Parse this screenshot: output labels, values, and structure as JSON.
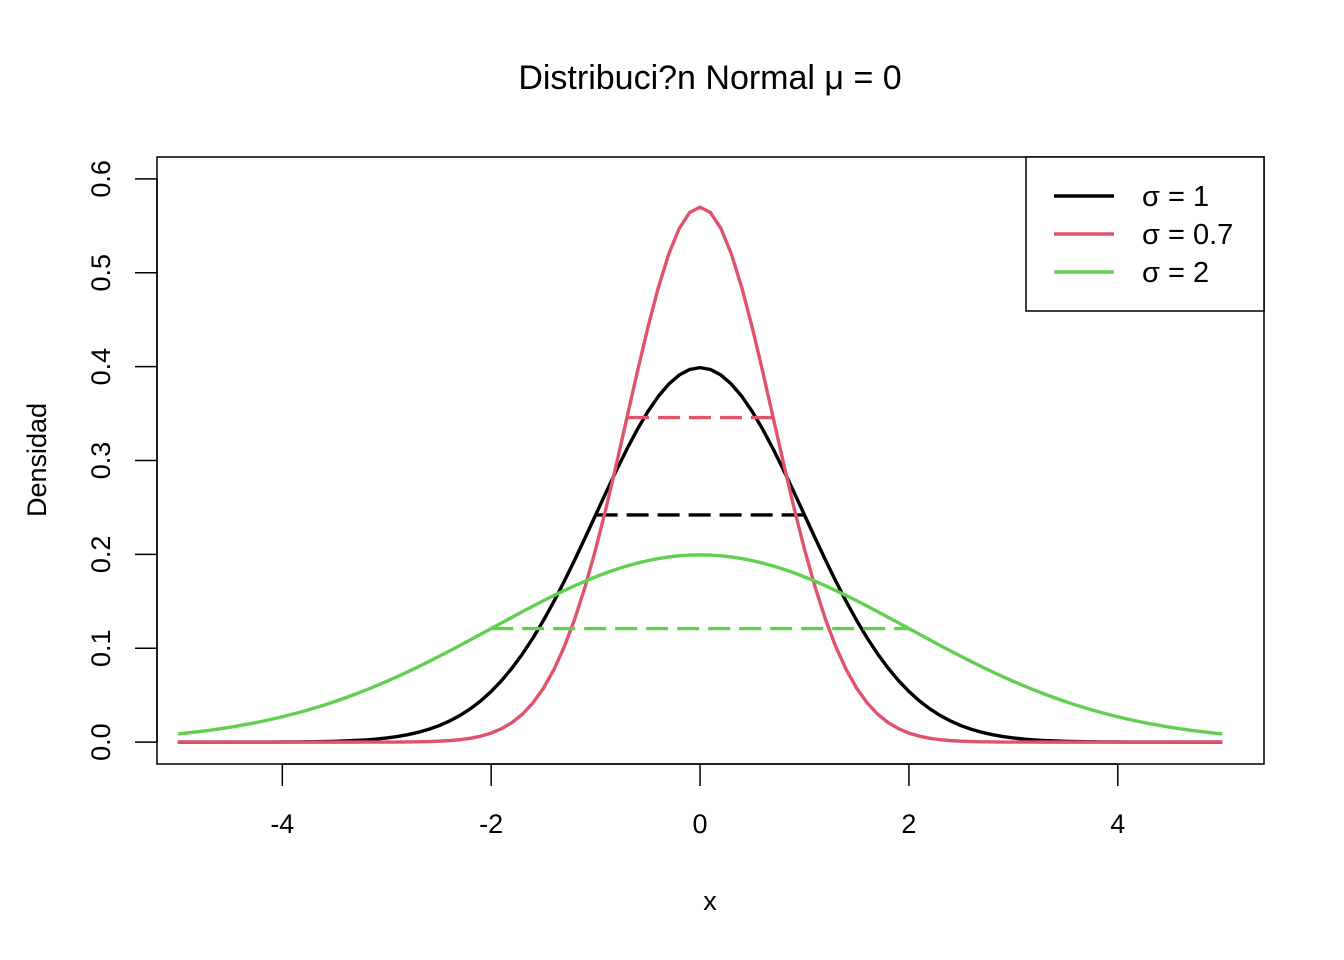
{
  "chart_data": {
    "type": "line",
    "title": "Distribuci?n Normal μ = 0",
    "xlabel": "x",
    "ylabel": "Densidad",
    "xlim": [
      -5.2,
      5.4
    ],
    "ylim": [
      -0.0233,
      0.6233
    ],
    "x_ticks": [
      -4,
      -2,
      0,
      2,
      4
    ],
    "x_tick_labels": [
      "-4",
      "-2",
      "0",
      "2",
      "4"
    ],
    "y_ticks": [
      0.0,
      0.1,
      0.2,
      0.3,
      0.4,
      0.5,
      0.6
    ],
    "y_tick_labels": [
      "0.0",
      "0.1",
      "0.2",
      "0.3",
      "0.4",
      "0.5",
      "0.6"
    ],
    "x_range": [
      -5,
      5
    ],
    "grid": false,
    "legend_position": "top-right",
    "series": [
      {
        "name": "σ = 1",
        "mean": 0,
        "sd": 1,
        "color": "#000000",
        "dashed_segment": {
          "x": [
            -1,
            1
          ],
          "y": 0.242
        }
      },
      {
        "name": "σ = 0.7",
        "mean": 0,
        "sd": 0.7,
        "color": "#DF536B",
        "dashed_segment": {
          "x": [
            -0.7,
            0.7
          ],
          "y": 0.3457
        }
      },
      {
        "name": "σ = 2",
        "mean": 0,
        "sd": 2,
        "color": "#61D04F",
        "dashed_segment": {
          "x": [
            -2,
            2
          ],
          "y": 0.121
        }
      }
    ]
  }
}
